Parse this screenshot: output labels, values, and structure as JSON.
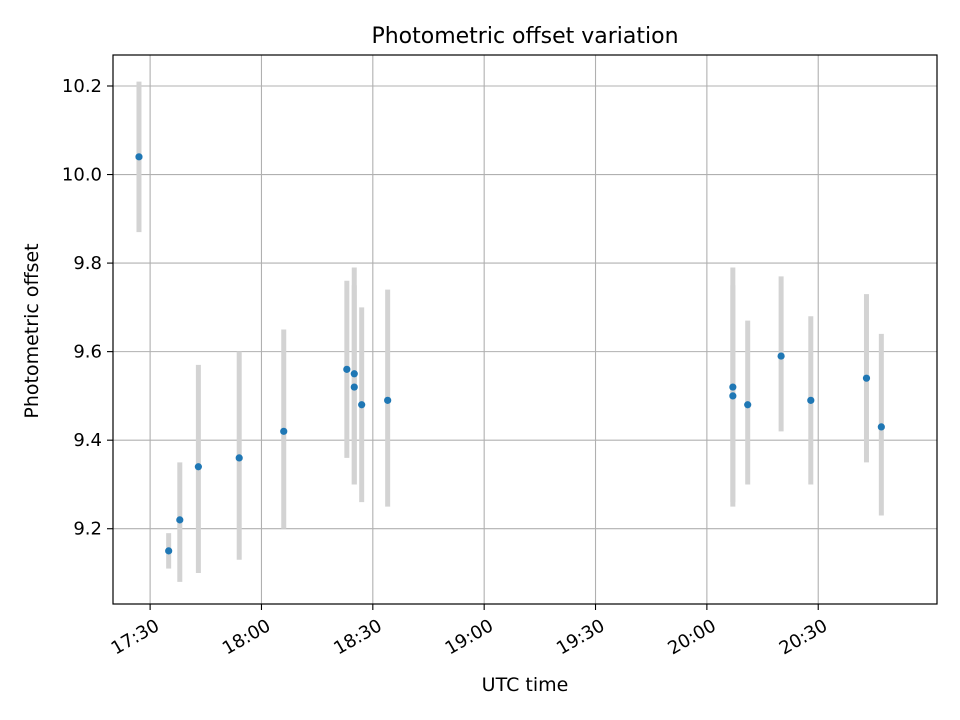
{
  "chart_data": {
    "type": "scatter",
    "title": "Photometric offset variation",
    "xlabel": "UTC time",
    "ylabel": "Photometric offset",
    "x_tick_labels": [
      "17:30",
      "18:00",
      "18:30",
      "19:00",
      "19:30",
      "20:00",
      "20:30"
    ],
    "x_ticks": [
      "17:30",
      "18:00",
      "18:30",
      "19:00",
      "19:30",
      "20:00",
      "20:30"
    ],
    "y_tick_labels": [
      "9.2",
      "9.4",
      "9.6",
      "9.8",
      "10.0",
      "10.2"
    ],
    "y_ticks": [
      9.2,
      9.4,
      9.6,
      9.8,
      10.0,
      10.2
    ],
    "xlim": [
      "17:20",
      "21:02"
    ],
    "ylim": [
      9.03,
      10.27
    ],
    "grid": true,
    "point_color": "#1f77b4",
    "errorbar_color": "#d3d3d3",
    "points": [
      {
        "t": "17:27",
        "y": 10.04,
        "lo": 9.87,
        "hi": 10.21
      },
      {
        "t": "17:35",
        "y": 9.15,
        "lo": 9.11,
        "hi": 9.19
      },
      {
        "t": "17:38",
        "y": 9.22,
        "lo": 9.08,
        "hi": 9.35
      },
      {
        "t": "17:43",
        "y": 9.34,
        "lo": 9.1,
        "hi": 9.57
      },
      {
        "t": "17:54",
        "y": 9.36,
        "lo": 9.13,
        "hi": 9.6
      },
      {
        "t": "18:06",
        "y": 9.42,
        "lo": 9.2,
        "hi": 9.65
      },
      {
        "t": "18:23",
        "y": 9.56,
        "lo": 9.36,
        "hi": 9.76
      },
      {
        "t": "18:25",
        "y": 9.52,
        "lo": 9.3,
        "hi": 9.75
      },
      {
        "t": "18:25",
        "y": 9.55,
        "lo": 9.3,
        "hi": 9.79
      },
      {
        "t": "18:27",
        "y": 9.48,
        "lo": 9.26,
        "hi": 9.7
      },
      {
        "t": "18:34",
        "y": 9.49,
        "lo": 9.25,
        "hi": 9.74
      },
      {
        "t": "20:07",
        "y": 9.52,
        "lo": 9.25,
        "hi": 9.79
      },
      {
        "t": "20:07",
        "y": 9.5,
        "lo": 9.26,
        "hi": 9.75
      },
      {
        "t": "20:11",
        "y": 9.48,
        "lo": 9.3,
        "hi": 9.67
      },
      {
        "t": "20:20",
        "y": 9.59,
        "lo": 9.42,
        "hi": 9.77
      },
      {
        "t": "20:28",
        "y": 9.49,
        "lo": 9.3,
        "hi": 9.68
      },
      {
        "t": "20:43",
        "y": 9.54,
        "lo": 9.35,
        "hi": 9.73
      },
      {
        "t": "20:47",
        "y": 9.43,
        "lo": 9.23,
        "hi": 9.64
      }
    ]
  }
}
